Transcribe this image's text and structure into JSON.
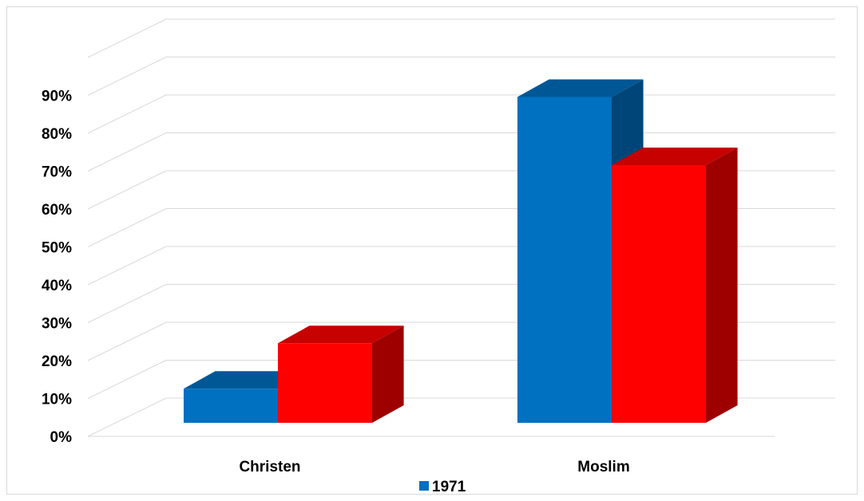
{
  "chart_data": {
    "type": "bar",
    "style": "3d-clustered-column",
    "categories": [
      "Christen",
      "Moslim"
    ],
    "series": [
      {
        "name": "1971",
        "color": "#0070C0",
        "values": [
          9,
          86
        ]
      },
      {
        "color": "#FF0000",
        "values": [
          21,
          68
        ]
      }
    ],
    "ylim": [
      0,
      100
    ],
    "y_tick_labels": [
      "0%",
      "10%",
      "20%",
      "30%",
      "40%",
      "50%",
      "60%",
      "70%",
      "80%",
      "90%"
    ],
    "grid": true,
    "legend": {
      "position": "bottom",
      "entries": [
        "1971"
      ]
    },
    "title": "",
    "xlabel": "",
    "ylabel": ""
  }
}
